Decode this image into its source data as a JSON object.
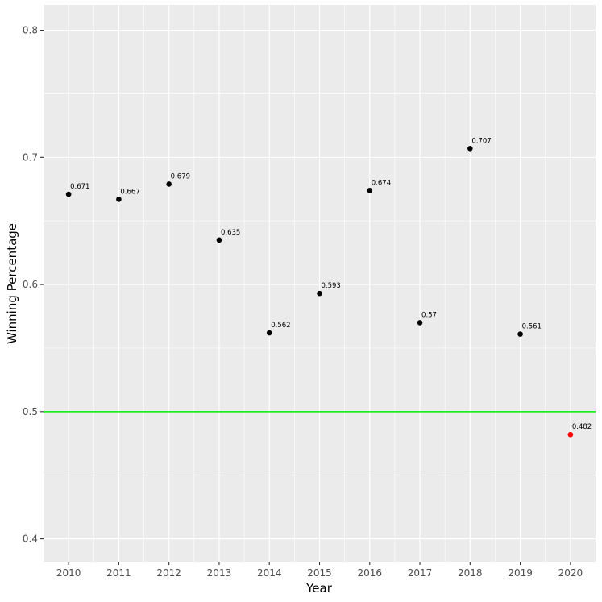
{
  "chart_data": {
    "type": "scatter",
    "title": "",
    "xlabel": "Year",
    "ylabel": "Winning Percentage",
    "x": [
      2010,
      2011,
      2012,
      2013,
      2014,
      2015,
      2016,
      2017,
      2018,
      2019,
      2020
    ],
    "y": [
      0.671,
      0.667,
      0.679,
      0.635,
      0.562,
      0.593,
      0.674,
      0.57,
      0.707,
      0.561,
      0.482
    ],
    "point_labels": [
      "0.671",
      "0.667",
      "0.679",
      "0.635",
      "0.562",
      "0.593",
      "0.674",
      "0.57",
      "0.707",
      "0.561",
      "0.482"
    ],
    "point_colors": [
      "#000000",
      "#000000",
      "#000000",
      "#000000",
      "#000000",
      "#000000",
      "#000000",
      "#000000",
      "#000000",
      "#000000",
      "#ff0000"
    ],
    "x_tick_labels": [
      "2010",
      "2011",
      "2012",
      "2013",
      "2014",
      "2015",
      "2016",
      "2017",
      "2018",
      "2019",
      "2020"
    ],
    "y_ticks": [
      0.4,
      0.5,
      0.6,
      0.7,
      0.8
    ],
    "y_tick_labels": [
      "0.4",
      "0.5",
      "0.6",
      "0.7",
      "0.8"
    ],
    "xlim": [
      2009.5,
      2020.5
    ],
    "ylim": [
      0.382,
      0.82
    ],
    "reference_line": {
      "y": 0.5,
      "color": "#00ee00"
    },
    "grid": true,
    "legend": "none",
    "colors": {
      "panel": "#ebebeb",
      "grid": "#ffffff"
    }
  }
}
